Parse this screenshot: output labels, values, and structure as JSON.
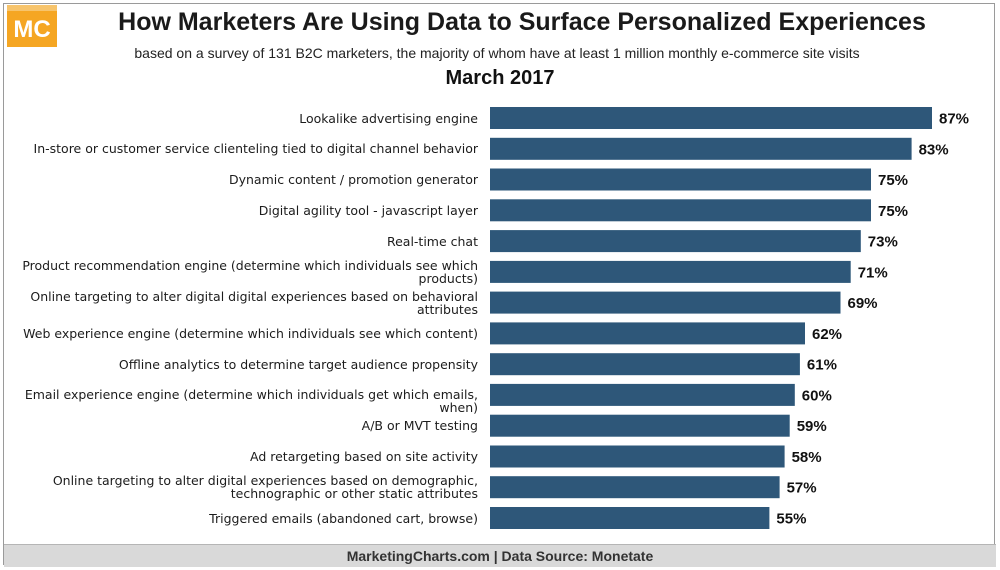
{
  "logo": {
    "text": "MC",
    "colors": [
      "#f5a623",
      "#f7c46c"
    ]
  },
  "header": {
    "title": "How Marketers Are Using Data to Surface Personalized Experiences",
    "subtitle": "based on a survey of 131 B2C marketers, the majority of whom have at least 1 million monthly e-commerce site visits",
    "date": "March 2017"
  },
  "footer": {
    "text": "MarketingCharts.com | Data Source: Monetate"
  },
  "colors": {
    "bar": "#2e5779"
  },
  "chart_data": {
    "type": "bar",
    "orientation": "horizontal",
    "title": "How Marketers Are Using Data to Surface Personalized Experiences",
    "subtitle": "based on a survey of 131 B2C marketers, the majority of whom have at least 1 million monthly e-commerce site visits",
    "xlabel": "",
    "ylabel": "",
    "grid": false,
    "categories": [
      "Lookalike advertising engine",
      "In-store or customer service clienteling tied to digital channel behavior",
      "Dynamic content / promotion generator",
      "Digital agility tool - javascript layer",
      "Real-time chat",
      [
        "Product recommendation engine (determine which individuals see which",
        "products)"
      ],
      [
        "Online targeting to alter digital digital experiences based on behavioral",
        "attributes"
      ],
      "Web experience engine (determine which individuals see which content)",
      "Offline analytics to determine target audience propensity",
      "Email experience engine (determine which individuals get which emails, when)",
      "A/B or MVT testing",
      "Ad retargeting based on site activity",
      [
        "Online targeting to alter digital experiences based on demographic,",
        "technographic or other static attributes"
      ],
      "Triggered emails (abandoned cart, browse)"
    ],
    "values": [
      87,
      83,
      75,
      75,
      73,
      71,
      69,
      62,
      61,
      60,
      59,
      58,
      57,
      55
    ],
    "value_labels": [
      "87%",
      "83%",
      "75%",
      "75%",
      "73%",
      "71%",
      "69%",
      "62%",
      "61%",
      "60%",
      "59%",
      "58%",
      "57%",
      "55%"
    ]
  }
}
